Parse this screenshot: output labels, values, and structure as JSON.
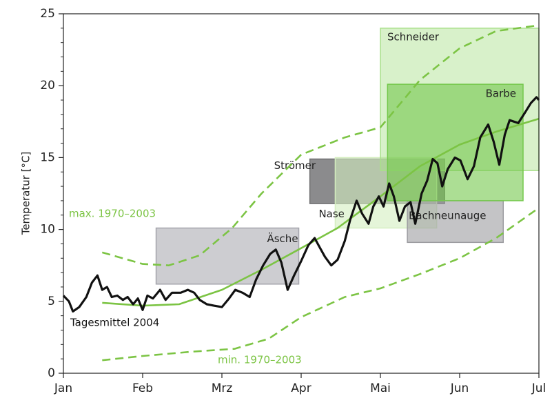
{
  "chart_data": {
    "type": "line",
    "ylabel": "Temperatur [°C]",
    "xlim": [
      0,
      6
    ],
    "xticks": [
      {
        "value": 0,
        "label": "Jan"
      },
      {
        "value": 1,
        "label": "Feb"
      },
      {
        "value": 2,
        "label": "Mrz"
      },
      {
        "value": 3,
        "label": "Apr"
      },
      {
        "value": 4,
        "label": "Mai"
      },
      {
        "value": 5,
        "label": "Jun"
      },
      {
        "value": 6,
        "label": "Jul"
      }
    ],
    "ylim": [
      0,
      25
    ],
    "yticks": [
      0,
      5,
      10,
      15,
      20,
      25
    ],
    "yminorticks": [
      1,
      2,
      3,
      4,
      6,
      7,
      8,
      9,
      11,
      12,
      13,
      14,
      16,
      17,
      18,
      19,
      21,
      22,
      23,
      24
    ],
    "boxes": [
      {
        "name": "Äsche",
        "x": [
          1.17,
          2.97
        ],
        "y": [
          6.2,
          10.1
        ],
        "color": "#a4a4ac",
        "opacity": 0.55
      },
      {
        "name": "Strömer",
        "x": [
          3.11,
          4.81
        ],
        "y": [
          11.8,
          14.9
        ],
        "color": "#6e6e70",
        "opacity": 0.8
      },
      {
        "name": "Nase",
        "x": [
          3.43,
          4.71
        ],
        "y": [
          10.1,
          15.0
        ],
        "color": "#d4eec0",
        "opacity": 0.6
      },
      {
        "name": "Bachneunauge",
        "x": [
          4.34,
          5.55
        ],
        "y": [
          9.1,
          12.0
        ],
        "color": "#9c9ca0",
        "opacity": 0.6
      },
      {
        "name": "Schneider",
        "x": [
          4.0,
          6.0
        ],
        "y": [
          14.1,
          24.0
        ],
        "color": "#a8e08a",
        "opacity": 0.45
      },
      {
        "name": "Barbe",
        "x": [
          4.09,
          5.8
        ],
        "y": [
          12.0,
          20.1
        ],
        "color": "#74c84c",
        "opacity": 0.6
      }
    ],
    "series": [
      {
        "name": "max. 1970–2003",
        "color": "#7cc444",
        "dashed": true,
        "x": [
          0.49,
          1.0,
          1.33,
          1.72,
          2.13,
          2.5,
          3.0,
          3.55,
          4.0,
          4.5,
          5.0,
          5.46,
          6.0
        ],
        "values": [
          8.4,
          7.6,
          7.5,
          8.2,
          10.1,
          12.5,
          15.2,
          16.4,
          17.1,
          20.4,
          22.6,
          23.8,
          24.2
        ]
      },
      {
        "name": "min. 1970–2003",
        "color": "#7cc444",
        "dashed": true,
        "x": [
          0.49,
          1.0,
          1.63,
          2.16,
          2.59,
          3.0,
          3.55,
          4.0,
          4.5,
          5.0,
          5.46,
          6.0
        ],
        "values": [
          0.9,
          1.2,
          1.5,
          1.7,
          2.4,
          3.9,
          5.3,
          5.9,
          6.9,
          8.0,
          9.4,
          11.5
        ]
      },
      {
        "color": "#7cc444",
        "dashed": false,
        "x": [
          0.49,
          1.0,
          1.46,
          2.0,
          2.5,
          3.0,
          3.46,
          4.0,
          4.5,
          5.0,
          5.46,
          6.0
        ],
        "values": [
          4.9,
          4.7,
          4.8,
          5.8,
          7.2,
          8.7,
          10.1,
          12.3,
          14.4,
          15.9,
          16.8,
          17.7
        ]
      },
      {
        "name": "Tagesmittel 2004",
        "color": "#111111",
        "dashed": false,
        "x": [
          0,
          0.07,
          0.12,
          0.2,
          0.29,
          0.36,
          0.43,
          0.49,
          0.55,
          0.61,
          0.68,
          0.75,
          0.81,
          0.88,
          0.94,
          1.0,
          1.06,
          1.13,
          1.22,
          1.29,
          1.37,
          1.48,
          1.57,
          1.65,
          1.72,
          1.81,
          1.9,
          2.0,
          2.09,
          2.17,
          2.26,
          2.35,
          2.43,
          2.52,
          2.61,
          2.68,
          2.75,
          2.83,
          2.91,
          3.0,
          3.09,
          3.17,
          3.23,
          3.3,
          3.38,
          3.46,
          3.55,
          3.62,
          3.7,
          3.77,
          3.85,
          3.91,
          3.98,
          4.04,
          4.11,
          4.17,
          4.24,
          4.31,
          4.38,
          4.44,
          4.52,
          4.59,
          4.66,
          4.72,
          4.78,
          4.85,
          4.94,
          5.01,
          5.1,
          5.18,
          5.26,
          5.36,
          5.43,
          5.5,
          5.57,
          5.63,
          5.74,
          5.81,
          5.9,
          5.97,
          6.0
        ],
        "values": [
          5.4,
          5.0,
          4.3,
          4.6,
          5.3,
          6.3,
          6.8,
          5.8,
          6.0,
          5.3,
          5.4,
          5.1,
          5.3,
          4.8,
          5.2,
          4.4,
          5.4,
          5.2,
          5.8,
          5.1,
          5.6,
          5.6,
          5.8,
          5.6,
          5.1,
          4.8,
          4.7,
          4.6,
          5.2,
          5.8,
          5.6,
          5.3,
          6.5,
          7.5,
          8.3,
          8.6,
          7.7,
          5.8,
          6.8,
          7.8,
          8.9,
          9.4,
          8.8,
          8.1,
          7.5,
          7.9,
          9.2,
          10.7,
          12.0,
          11.1,
          10.4,
          11.6,
          12.3,
          11.6,
          13.2,
          12.3,
          10.6,
          11.6,
          11.9,
          10.4,
          12.5,
          13.4,
          14.9,
          14.6,
          13.0,
          14.2,
          15.0,
          14.8,
          13.5,
          14.4,
          16.4,
          17.3,
          16.1,
          14.5,
          16.6,
          17.6,
          17.4,
          18.0,
          18.8,
          19.2,
          19.0
        ]
      }
    ]
  }
}
